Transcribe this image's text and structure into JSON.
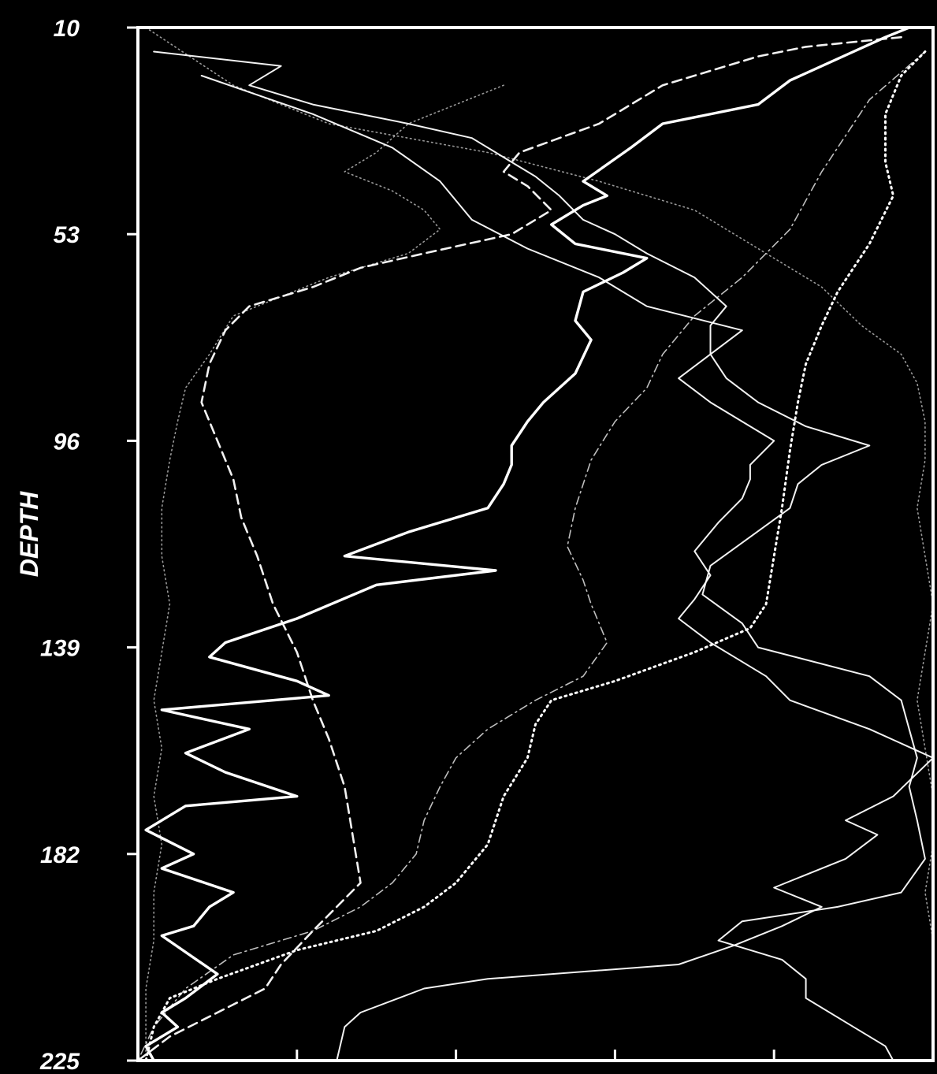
{
  "chart_data": {
    "type": "line",
    "title": "",
    "xlabel": "",
    "ylabel": "DEPTH",
    "y_inverted": true,
    "ylim": [
      10,
      225
    ],
    "yticks": [
      "10",
      "53",
      "96",
      "139",
      "182",
      "225"
    ],
    "xlim": [
      0,
      5
    ],
    "xticks": [
      0,
      1,
      2,
      3,
      4,
      5
    ],
    "xtick_labels_shown": false,
    "grid": false,
    "legend": "none",
    "colors": {
      "background": "#000000",
      "foreground": "#ffffff"
    },
    "series": [
      {
        "style": "solid-thick",
        "points": [
          [
            4.85,
            10
          ],
          [
            4.7,
            12
          ],
          [
            4.5,
            15
          ],
          [
            4.1,
            21
          ],
          [
            3.9,
            26
          ],
          [
            3.3,
            30
          ],
          [
            3.1,
            35
          ],
          [
            2.8,
            42
          ],
          [
            2.95,
            45
          ],
          [
            2.8,
            47
          ],
          [
            2.6,
            51
          ],
          [
            2.75,
            55
          ],
          [
            3.2,
            58
          ],
          [
            3.05,
            61
          ],
          [
            2.8,
            65
          ],
          [
            2.75,
            71
          ],
          [
            2.85,
            75
          ],
          [
            2.75,
            82
          ],
          [
            2.55,
            88
          ],
          [
            2.45,
            92
          ],
          [
            2.35,
            97
          ],
          [
            2.35,
            101
          ],
          [
            2.3,
            105
          ],
          [
            2.2,
            110
          ],
          [
            1.7,
            115
          ],
          [
            1.3,
            120
          ],
          [
            2.25,
            123
          ],
          [
            1.5,
            126
          ],
          [
            1.0,
            133
          ],
          [
            0.55,
            138
          ],
          [
            0.45,
            141
          ],
          [
            1.0,
            146
          ],
          [
            1.2,
            149
          ],
          [
            0.15,
            152
          ],
          [
            0.7,
            156
          ],
          [
            0.3,
            161
          ],
          [
            0.55,
            165
          ],
          [
            1.0,
            170
          ],
          [
            0.3,
            172
          ],
          [
            0.05,
            177
          ],
          [
            0.35,
            182
          ],
          [
            0.15,
            185
          ],
          [
            0.6,
            190
          ],
          [
            0.45,
            193
          ],
          [
            0.35,
            197
          ],
          [
            0.15,
            199
          ],
          [
            0.5,
            207
          ],
          [
            0.3,
            212
          ],
          [
            0.15,
            215
          ],
          [
            0.25,
            218
          ],
          [
            0.05,
            222
          ],
          [
            0.1,
            225
          ]
        ]
      },
      {
        "style": "solid-thin",
        "points": [
          [
            0.1,
            15
          ],
          [
            0.9,
            18
          ],
          [
            0.7,
            22
          ],
          [
            1.1,
            26
          ],
          [
            1.7,
            30
          ],
          [
            2.1,
            33
          ],
          [
            2.3,
            37
          ],
          [
            2.5,
            41
          ],
          [
            2.65,
            45
          ],
          [
            2.8,
            50
          ],
          [
            3.0,
            53
          ],
          [
            3.2,
            57
          ],
          [
            3.5,
            62
          ],
          [
            3.7,
            68
          ],
          [
            3.6,
            72
          ],
          [
            3.6,
            78
          ],
          [
            3.4,
            83
          ],
          [
            3.6,
            88
          ],
          [
            3.8,
            92
          ],
          [
            4.0,
            96
          ],
          [
            3.85,
            101
          ],
          [
            3.85,
            104
          ],
          [
            3.8,
            108
          ],
          [
            3.65,
            113
          ],
          [
            3.5,
            119
          ],
          [
            3.6,
            124
          ],
          [
            3.5,
            129
          ],
          [
            3.4,
            133
          ],
          [
            3.6,
            138
          ],
          [
            3.75,
            141
          ],
          [
            3.95,
            145
          ],
          [
            4.1,
            150
          ],
          [
            4.6,
            156
          ],
          [
            5.0,
            162
          ],
          [
            4.75,
            170
          ],
          [
            4.45,
            175
          ],
          [
            4.65,
            178
          ],
          [
            4.45,
            183
          ],
          [
            4.0,
            189
          ],
          [
            4.3,
            193
          ],
          [
            4.05,
            197
          ],
          [
            3.75,
            201
          ],
          [
            3.4,
            205
          ],
          [
            2.2,
            208
          ],
          [
            1.8,
            210
          ],
          [
            1.4,
            215
          ],
          [
            1.3,
            218
          ],
          [
            1.25,
            225
          ]
        ]
      },
      {
        "style": "solid-thin",
        "points": [
          [
            0.4,
            20
          ],
          [
            1.1,
            28
          ],
          [
            1.6,
            35
          ],
          [
            1.9,
            42
          ],
          [
            2.1,
            50
          ],
          [
            2.45,
            56
          ],
          [
            2.9,
            62
          ],
          [
            3.2,
            68
          ],
          [
            3.8,
            73
          ],
          [
            3.6,
            78
          ],
          [
            3.7,
            83
          ],
          [
            3.9,
            88
          ],
          [
            4.2,
            93
          ],
          [
            4.6,
            97
          ],
          [
            4.3,
            101
          ],
          [
            4.15,
            105
          ],
          [
            4.1,
            110
          ],
          [
            3.85,
            116
          ],
          [
            3.6,
            122
          ],
          [
            3.55,
            128
          ],
          [
            3.8,
            134
          ],
          [
            3.9,
            139
          ],
          [
            4.25,
            142
          ],
          [
            4.6,
            145
          ],
          [
            4.8,
            150
          ],
          [
            4.85,
            156
          ],
          [
            4.9,
            162
          ],
          [
            4.85,
            168
          ],
          [
            4.9,
            175
          ],
          [
            4.95,
            183
          ],
          [
            4.8,
            190
          ],
          [
            4.4,
            193
          ],
          [
            3.8,
            196
          ],
          [
            3.65,
            200
          ],
          [
            4.05,
            204
          ],
          [
            4.2,
            208
          ],
          [
            4.2,
            212
          ],
          [
            4.5,
            218
          ],
          [
            4.7,
            222
          ],
          [
            4.75,
            225
          ]
        ]
      },
      {
        "style": "dashed",
        "points": [
          [
            4.8,
            12
          ],
          [
            4.2,
            14
          ],
          [
            3.9,
            16
          ],
          [
            3.6,
            19
          ],
          [
            3.3,
            22
          ],
          [
            3.1,
            26
          ],
          [
            2.9,
            30
          ],
          [
            2.65,
            33
          ],
          [
            2.4,
            36
          ],
          [
            2.3,
            40
          ],
          [
            2.45,
            43
          ],
          [
            2.6,
            48
          ],
          [
            2.35,
            53
          ],
          [
            1.8,
            57
          ],
          [
            1.4,
            60
          ],
          [
            1.1,
            64
          ],
          [
            0.7,
            68
          ],
          [
            0.55,
            73
          ],
          [
            0.45,
            80
          ],
          [
            0.4,
            88
          ],
          [
            0.5,
            96
          ],
          [
            0.6,
            104
          ],
          [
            0.65,
            112
          ],
          [
            0.75,
            120
          ],
          [
            0.85,
            130
          ],
          [
            1.0,
            140
          ],
          [
            1.05,
            145
          ],
          [
            1.1,
            150
          ],
          [
            1.2,
            158
          ],
          [
            1.3,
            168
          ],
          [
            1.35,
            178
          ],
          [
            1.4,
            188
          ],
          [
            1.1,
            198
          ],
          [
            0.9,
            205
          ],
          [
            0.8,
            210
          ],
          [
            0.2,
            220
          ],
          [
            0.0,
            225
          ]
        ]
      },
      {
        "style": "dotted",
        "points": [
          [
            4.95,
            15
          ],
          [
            4.8,
            20
          ],
          [
            4.7,
            28
          ],
          [
            4.7,
            38
          ],
          [
            4.75,
            45
          ],
          [
            4.6,
            55
          ],
          [
            4.4,
            65
          ],
          [
            4.3,
            72
          ],
          [
            4.2,
            80
          ],
          [
            4.15,
            88
          ],
          [
            4.1,
            98
          ],
          [
            4.05,
            110
          ],
          [
            4.0,
            120
          ],
          [
            3.95,
            130
          ],
          [
            3.85,
            135
          ],
          [
            3.5,
            140
          ],
          [
            3.0,
            146
          ],
          [
            2.6,
            150
          ],
          [
            2.5,
            155
          ],
          [
            2.45,
            162
          ],
          [
            2.3,
            170
          ],
          [
            2.2,
            180
          ],
          [
            2.0,
            188
          ],
          [
            1.8,
            193
          ],
          [
            1.5,
            198
          ],
          [
            1.0,
            202
          ],
          [
            0.5,
            208
          ],
          [
            0.2,
            212
          ],
          [
            0.1,
            218
          ],
          [
            0.05,
            225
          ]
        ]
      },
      {
        "style": "dash-dot",
        "points": [
          [
            4.95,
            15
          ],
          [
            4.6,
            25
          ],
          [
            4.3,
            40
          ],
          [
            4.1,
            52
          ],
          [
            3.8,
            62
          ],
          [
            3.5,
            70
          ],
          [
            3.3,
            78
          ],
          [
            3.2,
            85
          ],
          [
            3.0,
            92
          ],
          [
            2.85,
            100
          ],
          [
            2.75,
            110
          ],
          [
            2.7,
            118
          ],
          [
            2.8,
            125
          ],
          [
            2.85,
            130
          ],
          [
            2.95,
            138
          ],
          [
            2.8,
            145
          ],
          [
            2.5,
            150
          ],
          [
            2.2,
            156
          ],
          [
            2.0,
            162
          ],
          [
            1.9,
            168
          ],
          [
            1.8,
            175
          ],
          [
            1.75,
            182
          ],
          [
            1.6,
            188
          ],
          [
            1.4,
            193
          ],
          [
            1.1,
            198
          ],
          [
            0.6,
            203
          ],
          [
            0.3,
            210
          ],
          [
            0.1,
            218
          ],
          [
            0.0,
            225
          ]
        ]
      },
      {
        "style": "dotted-faint",
        "points": [
          [
            0.05,
            10
          ],
          [
            0.6,
            22
          ],
          [
            1.2,
            30
          ],
          [
            2.2,
            36
          ],
          [
            2.9,
            42
          ],
          [
            3.5,
            48
          ],
          [
            3.9,
            56
          ],
          [
            4.3,
            64
          ],
          [
            4.55,
            72
          ],
          [
            4.8,
            78
          ],
          [
            4.9,
            84
          ],
          [
            4.95,
            92
          ],
          [
            4.95,
            100
          ],
          [
            4.9,
            110
          ],
          [
            4.95,
            120
          ],
          [
            5.0,
            130
          ],
          [
            4.95,
            140
          ],
          [
            4.9,
            150
          ],
          [
            4.95,
            160
          ],
          [
            5.0,
            170
          ],
          [
            5.0,
            180
          ],
          [
            4.95,
            190
          ],
          [
            5.0,
            200
          ],
          [
            5.0,
            212
          ],
          [
            5.0,
            225
          ]
        ]
      },
      {
        "style": "dotted-faint",
        "points": [
          [
            2.3,
            22
          ],
          [
            1.7,
            30
          ],
          [
            1.5,
            36
          ],
          [
            1.3,
            40
          ],
          [
            1.6,
            44
          ],
          [
            1.8,
            48
          ],
          [
            1.9,
            52
          ],
          [
            1.7,
            57
          ],
          [
            1.2,
            62
          ],
          [
            0.9,
            66
          ],
          [
            0.6,
            70
          ],
          [
            0.45,
            78
          ],
          [
            0.3,
            85
          ],
          [
            0.25,
            92
          ],
          [
            0.2,
            100
          ],
          [
            0.15,
            110
          ],
          [
            0.15,
            120
          ],
          [
            0.2,
            130
          ],
          [
            0.15,
            140
          ],
          [
            0.1,
            150
          ],
          [
            0.15,
            160
          ],
          [
            0.1,
            170
          ],
          [
            0.15,
            180
          ],
          [
            0.1,
            190
          ],
          [
            0.1,
            200
          ],
          [
            0.05,
            210
          ],
          [
            0.05,
            225
          ]
        ]
      }
    ]
  }
}
